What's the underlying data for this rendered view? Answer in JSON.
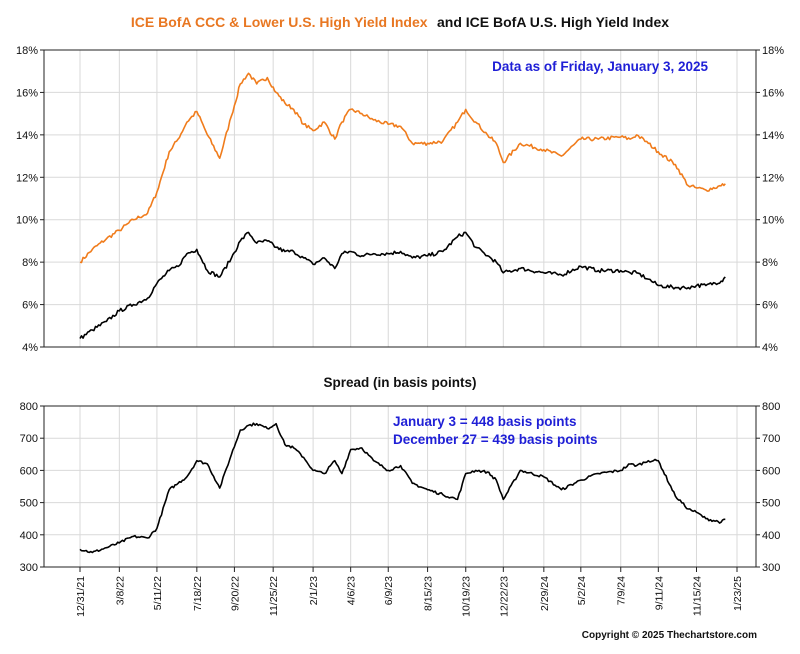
{
  "chart_data": [
    {
      "type": "line",
      "title_part1": "ICE BofA CCC & Lower U.S. High Yield Index",
      "title_part2": "and ICE BofA U.S. High Yield Index",
      "annotation": "Data as of Friday, January 3, 2025",
      "ylim": [
        4,
        18
      ],
      "yticks": [
        "4%",
        "6%",
        "8%",
        "10%",
        "12%",
        "14%",
        "16%",
        "18%"
      ],
      "grid": true,
      "x": [
        "2021-12-31",
        "2022-01-21",
        "2022-02-14",
        "2022-03-08",
        "2022-04-01",
        "2022-04-25",
        "2022-05-11",
        "2022-06-01",
        "2022-06-16",
        "2022-07-01",
        "2022-07-18",
        "2022-08-05",
        "2022-08-26",
        "2022-09-15",
        "2022-09-30",
        "2022-10-14",
        "2022-10-28",
        "2022-11-15",
        "2022-11-30",
        "2022-12-15",
        "2022-12-30",
        "2023-01-16",
        "2023-02-01",
        "2023-02-20",
        "2023-03-10",
        "2023-03-22",
        "2023-04-06",
        "2023-04-25",
        "2023-05-15",
        "2023-06-09",
        "2023-06-30",
        "2023-07-20",
        "2023-08-15",
        "2023-09-10",
        "2023-10-05",
        "2023-10-19",
        "2023-11-05",
        "2023-11-25",
        "2023-12-10",
        "2023-12-22",
        "2024-01-20",
        "2024-02-29",
        "2024-03-30",
        "2024-05-02",
        "2024-06-01",
        "2024-07-09",
        "2024-07-25",
        "2024-08-05",
        "2024-08-25",
        "2024-09-11",
        "2024-10-10",
        "2024-11-01",
        "2024-11-15",
        "2024-12-01",
        "2024-12-27",
        "2025-01-03"
      ],
      "series": [
        {
          "name": "ICE BofA CCC & Lower U.S. High Yield Index",
          "color": "#f07c1c",
          "values": [
            8.0,
            8.6,
            9.1,
            9.5,
            10.0,
            10.3,
            11.3,
            13.2,
            13.8,
            14.6,
            15.1,
            14.0,
            12.9,
            14.9,
            16.4,
            16.9,
            16.4,
            16.7,
            16.0,
            15.5,
            15.2,
            14.5,
            14.2,
            14.6,
            13.8,
            14.6,
            15.2,
            15.0,
            14.7,
            14.5,
            14.4,
            13.6,
            13.6,
            13.7,
            14.6,
            15.2,
            14.6,
            14.0,
            13.6,
            12.7,
            13.6,
            13.3,
            13.0,
            13.8,
            13.8,
            13.9,
            13.8,
            14.0,
            13.6,
            13.2,
            12.6,
            11.6,
            11.5,
            11.4,
            11.6,
            11.7
          ]
        },
        {
          "name": "ICE BofA U.S. High Yield Index",
          "color": "#000000",
          "values": [
            4.4,
            4.8,
            5.2,
            5.7,
            6.0,
            6.3,
            7.0,
            7.6,
            7.8,
            8.4,
            8.6,
            7.6,
            7.3,
            8.2,
            9.0,
            9.4,
            8.9,
            9.0,
            8.7,
            8.5,
            8.5,
            8.2,
            7.9,
            8.2,
            7.7,
            8.4,
            8.5,
            8.3,
            8.4,
            8.4,
            8.5,
            8.2,
            8.3,
            8.5,
            9.2,
            9.4,
            8.7,
            8.3,
            8.0,
            7.5,
            7.7,
            7.5,
            7.4,
            7.8,
            7.6,
            7.6,
            7.5,
            7.5,
            7.2,
            6.9,
            6.8,
            6.8,
            6.9,
            6.9,
            7.1,
            7.3
          ]
        }
      ]
    },
    {
      "type": "line",
      "title": "Spread (in basis points)",
      "annotation_lines": [
        "January 3 = 448 basis points",
        "December 27 = 439 basis points"
      ],
      "ylim": [
        300,
        800
      ],
      "yticks": [
        "300",
        "400",
        "500",
        "600",
        "700",
        "800"
      ],
      "grid": true,
      "x": [
        "2021-12-31",
        "2022-01-21",
        "2022-02-14",
        "2022-03-08",
        "2022-04-01",
        "2022-04-25",
        "2022-05-11",
        "2022-06-01",
        "2022-06-16",
        "2022-07-01",
        "2022-07-18",
        "2022-08-05",
        "2022-08-26",
        "2022-09-15",
        "2022-09-30",
        "2022-10-14",
        "2022-10-28",
        "2022-11-15",
        "2022-11-30",
        "2022-12-15",
        "2022-12-30",
        "2023-01-16",
        "2023-02-01",
        "2023-02-20",
        "2023-03-10",
        "2023-03-22",
        "2023-04-06",
        "2023-04-25",
        "2023-05-15",
        "2023-06-09",
        "2023-06-30",
        "2023-07-20",
        "2023-08-15",
        "2023-09-10",
        "2023-10-05",
        "2023-10-19",
        "2023-11-05",
        "2023-11-25",
        "2023-12-10",
        "2023-12-22",
        "2024-01-20",
        "2024-02-29",
        "2024-03-30",
        "2024-05-02",
        "2024-06-01",
        "2024-07-09",
        "2024-07-25",
        "2024-08-05",
        "2024-08-25",
        "2024-09-11",
        "2024-10-10",
        "2024-11-01",
        "2024-11-15",
        "2024-12-01",
        "2024-12-27",
        "2025-01-03"
      ],
      "series": [
        {
          "name": "Spread",
          "color": "#000000",
          "values": [
            355,
            345,
            360,
            375,
            395,
            390,
            420,
            540,
            560,
            580,
            630,
            620,
            545,
            650,
            725,
            740,
            745,
            730,
            745,
            680,
            670,
            640,
            600,
            590,
            630,
            590,
            665,
            670,
            630,
            600,
            615,
            560,
            540,
            525,
            510,
            590,
            600,
            595,
            570,
            510,
            600,
            580,
            540,
            570,
            590,
            600,
            620,
            615,
            630,
            630,
            520,
            480,
            470,
            450,
            439,
            448
          ]
        }
      ]
    }
  ],
  "x_ticks": [
    "12/31/21",
    "3/8/22",
    "5/11/22",
    "7/18/22",
    "9/20/22",
    "11/25/22",
    "2/1/23",
    "4/6/23",
    "6/9/23",
    "8/15/23",
    "10/19/23",
    "12/22/23",
    "2/29/24",
    "5/2/24",
    "7/9/24",
    "9/11/24",
    "11/15/24",
    "1/23/25"
  ],
  "copyright": "Copyright © 2025 Thechartstore.com"
}
